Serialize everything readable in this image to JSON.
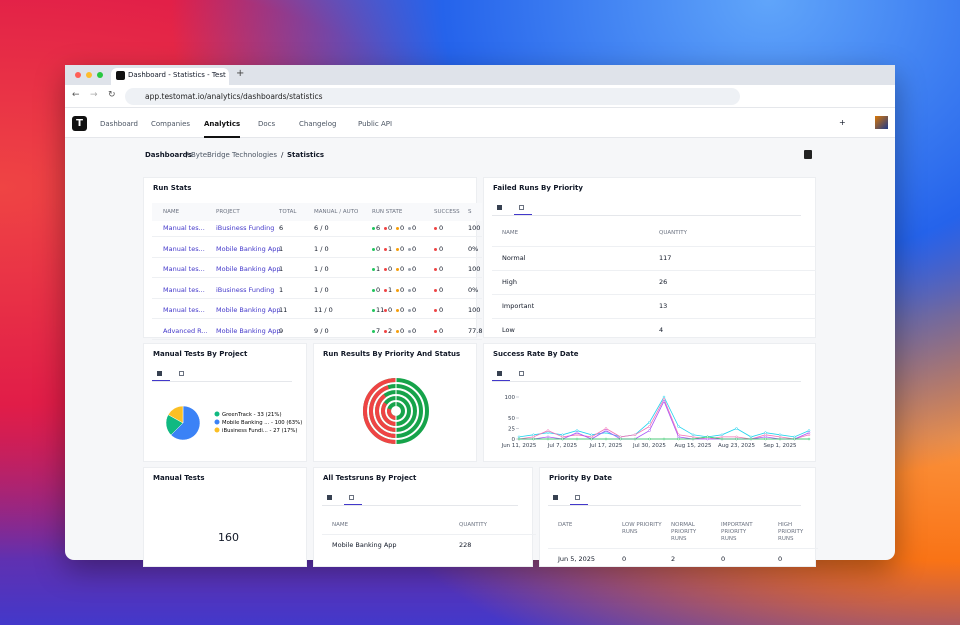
{
  "browser": {
    "tab_title": "Dashboard - Statistics - Test",
    "url": "app.testomat.io/analytics/dashboards/statistics"
  },
  "nav": {
    "items": [
      "Dashboard",
      "Companies",
      "Analytics",
      "Docs",
      "Changelog",
      "Public API"
    ]
  },
  "breadcrumb": [
    "Dashboards",
    "ByteBridge Technologies",
    "Statistics"
  ],
  "run_stats": {
    "title": "Run Stats",
    "columns": [
      "NAME",
      "PROJECT",
      "TOTAL",
      "MANUAL / AUTO",
      "RUN STATE",
      "SUCCESS",
      "S"
    ],
    "rows": [
      {
        "name": "Manual tes...",
        "project": "iBusiness Funding",
        "total": "6",
        "manual_auto": "6 / 0",
        "run_state": [
          6,
          0,
          0,
          0
        ],
        "success": "0",
        "rate": "100"
      },
      {
        "name": "Manual tes...",
        "project": "Mobile Banking App",
        "total": "1",
        "manual_auto": "1 / 0",
        "run_state": [
          0,
          1,
          0,
          0
        ],
        "success": "0",
        "rate": "0%"
      },
      {
        "name": "Manual tes...",
        "project": "Mobile Banking App",
        "total": "1",
        "manual_auto": "1 / 0",
        "run_state": [
          1,
          0,
          0,
          0
        ],
        "success": "0",
        "rate": "100"
      },
      {
        "name": "Manual tes...",
        "project": "iBusiness Funding",
        "total": "1",
        "manual_auto": "1 / 0",
        "run_state": [
          0,
          1,
          0,
          0
        ],
        "success": "0",
        "rate": "0%"
      },
      {
        "name": "Manual tes...",
        "project": "Mobile Banking App",
        "total": "11",
        "manual_auto": "11 / 0",
        "run_state": [
          11,
          0,
          0,
          0
        ],
        "success": "0",
        "rate": "100"
      },
      {
        "name": "Advanced R...",
        "project": "Mobile Banking App",
        "total": "9",
        "manual_auto": "9 / 0",
        "run_state": [
          7,
          2,
          0,
          0
        ],
        "success": "0",
        "rate": "77.8"
      }
    ]
  },
  "failed_runs_by_priority": {
    "title": "Failed Runs By Priority",
    "columns": [
      "NAME",
      "QUANTITY"
    ],
    "rows": [
      [
        "Normal",
        "117"
      ],
      [
        "High",
        "26"
      ],
      [
        "Important",
        "13"
      ],
      [
        "Low",
        "4"
      ]
    ]
  },
  "manual_tests_by_project": {
    "title": "Manual Tests By Project",
    "chart": {
      "type": "pie",
      "values": [
        100,
        33,
        27
      ],
      "colors": [
        "#3b82f6",
        "#10b981",
        "#fbbf24"
      ],
      "legend": [
        "Mobile Banking ... - 100 (63%)",
        "GreenTrack - 33 (21%)",
        "iBusiness Fundi... - 27 (17%)"
      ]
    }
  },
  "run_results_by_priority_and_status": {
    "title": "Run Results By Priority And Status"
  },
  "success_rate_by_date": {
    "title": "Success Rate By Date",
    "chart": {
      "type": "line",
      "categories": [
        "Jun 11, 2025",
        null,
        null,
        "Jul 7, 2025",
        null,
        null,
        "Jul 17, 2025",
        null,
        null,
        "Jul 30, 2025",
        null,
        null,
        "Aug 15, 2025",
        null,
        null,
        "Aug 23, 2025",
        null,
        null,
        "Sep 1, 2025",
        null,
        null
      ],
      "ylim": [
        0,
        100
      ],
      "yticks": [
        0,
        25,
        50,
        100
      ],
      "series": [
        {
          "color": "#22d3ee",
          "values": [
            5,
            10,
            15,
            10,
            20,
            10,
            15,
            5,
            10,
            40,
            100,
            30,
            10,
            5,
            10,
            25,
            5,
            15,
            10,
            5,
            20
          ]
        },
        {
          "color": "#f472b6",
          "values": [
            0,
            5,
            20,
            5,
            10,
            5,
            25,
            5,
            10,
            30,
            95,
            10,
            5,
            0,
            5,
            5,
            0,
            10,
            5,
            0,
            10
          ]
        },
        {
          "color": "#a855f7",
          "values": [
            0,
            0,
            5,
            0,
            15,
            0,
            20,
            0,
            0,
            20,
            90,
            5,
            0,
            0,
            0,
            0,
            0,
            5,
            0,
            0,
            15
          ]
        },
        {
          "color": "#22c55e",
          "values": [
            0,
            0,
            0,
            0,
            0,
            0,
            0,
            0,
            0,
            0,
            0,
            0,
            0,
            5,
            0,
            0,
            0,
            0,
            0,
            0,
            0
          ]
        }
      ]
    }
  },
  "manual_tests": {
    "title": "Manual Tests",
    "value": "160"
  },
  "all_testruns_by_project": {
    "title": "All Testsruns By Project",
    "columns": [
      "NAME",
      "QUANTITY"
    ],
    "rows": [
      [
        "Mobile Banking App",
        "228"
      ]
    ]
  },
  "priority_by_date": {
    "title": "Priority By Date",
    "columns": [
      "DATE",
      "LOW PRIORITY RUNS",
      "NORMAL PRIORITY RUNS",
      "IMPORTANT PRIORITY RUNS",
      "HIGH PRIORITY RUNS"
    ],
    "rows": [
      [
        "Jun 5, 2025",
        "0",
        "2",
        "0",
        "0"
      ]
    ]
  }
}
